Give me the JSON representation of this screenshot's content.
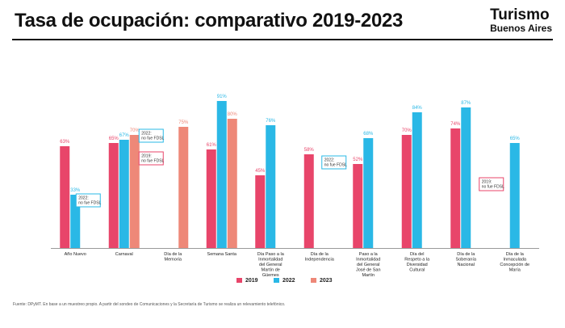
{
  "header": {
    "title": "Tasa de ocupación: comparativo 2019-2023",
    "logo_line1": "Turismo",
    "logo_line2": "Buenos Aires"
  },
  "source_note": "Fuente: DPyMT. En base a un muestreo propio. A partir del sondeo de Comunicaciones y la Secretaría de Turismo se realiza un relevamiento telefónico.",
  "colors": {
    "2019": "#e8456a",
    "2022": "#2ab8e6",
    "2023": "#ee8878"
  },
  "chart_data": {
    "type": "bar",
    "categories": [
      "Año Nuevo",
      "Carnaval",
      "Día de la Memoria",
      "Semana Santa",
      "Día Paso a la Inmortalidad del General Martín de Güemes",
      "Día de la Independencia",
      "Paso a la Inmortalidad del General José de San Martín",
      "Día del Respeto a la Diversidad Cultural",
      "Día de la Soberanía Nacional",
      "Día de la Inmaculada Concepción de María"
    ],
    "series": [
      {
        "name": "2019",
        "values": [
          63,
          65,
          0,
          61,
          45,
          58,
          52,
          70,
          74,
          0
        ]
      },
      {
        "name": "2022",
        "values": [
          33,
          67,
          0,
          91,
          76,
          0,
          68,
          84,
          87,
          65
        ]
      },
      {
        "name": "2023",
        "values": [
          0,
          70,
          75,
          80,
          0,
          0,
          0,
          0,
          0,
          0
        ]
      }
    ],
    "notes": [
      {
        "text": "2022: no fue FDSL",
        "category_index": 0,
        "color": "#2ab8e6"
      },
      {
        "text": "2022: no fue FDSL",
        "category_index": 2,
        "color": "#2ab8e6"
      },
      {
        "text": "2019: no fue FDSL",
        "category_index": 2,
        "color": "#e8456a"
      },
      {
        "text": "2022: no fue FDSL",
        "category_index": 5,
        "color": "#2ab8e6"
      },
      {
        "text": "2019: no fue FDSL",
        "category_index": 9,
        "color": "#e8456a"
      }
    ],
    "ylim": [
      0,
      100
    ],
    "grid": false,
    "legend_position": "bottom-center"
  }
}
